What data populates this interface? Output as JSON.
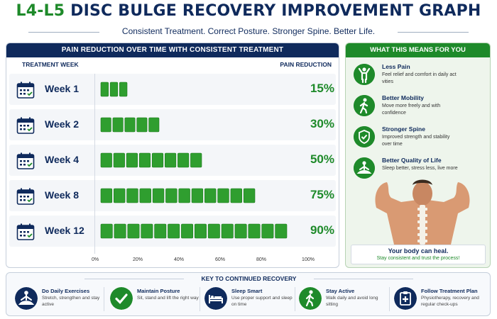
{
  "header": {
    "title_part1": "L4-L5",
    "title_part2": "DISC BULGE RECOVERY IMPROVEMENT GRAPH",
    "subtitle": "Consistent Treatment. Correct Posture. Stronger Spine. Better Life."
  },
  "chart_data": {
    "type": "bar",
    "title": "PAIN REDUCTION OVER TIME WITH CONSISTENT TREATMENT",
    "xlabel": "PAIN REDUCTION",
    "ylabel": "TREATMENT WEEK",
    "categories": [
      "Week 1",
      "Week 2",
      "Week 4",
      "Week 8",
      "Week 12"
    ],
    "values": [
      15,
      30,
      50,
      75,
      90
    ],
    "value_labels": [
      "15%",
      "30%",
      "50%",
      "75%",
      "90%"
    ],
    "segments": [
      3,
      5,
      8,
      12,
      14
    ],
    "xlim": [
      0,
      100
    ],
    "x_ticks": [
      "0%",
      "20%",
      "40%",
      "60%",
      "80%",
      "100%"
    ],
    "orientation": "horizontal",
    "bar_color": "#2f9e2f"
  },
  "side": {
    "title": "WHAT THIS MEANS FOR YOU",
    "items": [
      {
        "title": "Less Pain",
        "desc": "Feel relief and comfort in daily act vities",
        "icon": "person-arms-up-icon"
      },
      {
        "title": "Better Mobility",
        "desc": "Move more freely and with confidence",
        "icon": "walking-person-icon"
      },
      {
        "title": "Stronger Spine",
        "desc": "Improved strength and stability over time",
        "icon": "shield-check-icon"
      },
      {
        "title": "Better Quality of Life",
        "desc": "Sleep better, stress less, live more",
        "icon": "meditation-icon"
      }
    ],
    "heal_title": "Your body can heal.",
    "heal_sub": "Stay consistent and trust the process!"
  },
  "key": {
    "title": "KEY TO CONTINUED RECOVERY",
    "items": [
      {
        "title": "Do Daily Exercises",
        "desc": "Stretch, strengthen and stay active",
        "icon": "meditation-icon",
        "color": "#0f2a5c"
      },
      {
        "title": "Maintain Posture",
        "desc": "Sit, stand and lift the right way",
        "icon": "check-icon",
        "color": "#1e8a2a"
      },
      {
        "title": "Sleep Smart",
        "desc": "Use proper support and sleep on time",
        "icon": "bed-icon",
        "color": "#0f2a5c"
      },
      {
        "title": "Stay Active",
        "desc": "Walk daily and avoid long sitting",
        "icon": "walking-person-icon",
        "color": "#1e8a2a"
      },
      {
        "title": "Follow Treatment Plan",
        "desc": "Physiotherapy, recovery and regular check-ups",
        "icon": "clipboard-plus-icon",
        "color": "#0f2a5c"
      }
    ]
  },
  "colors": {
    "navy": "#0f2a5c",
    "green": "#1e8a2a",
    "bar": "#2f9e2f"
  }
}
